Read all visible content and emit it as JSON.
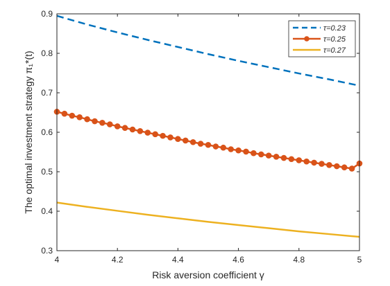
{
  "chart_data": {
    "type": "line",
    "xlabel": "Risk aversion coefficient γ",
    "ylabel": "The optimal investment strategy π₁*(t)",
    "xlim": [
      4,
      5
    ],
    "ylim": [
      0.3,
      0.9
    ],
    "xticks": [
      "4",
      "4.2",
      "4.4",
      "4.6",
      "4.8",
      "5"
    ],
    "yticks": [
      "0.3",
      "0.4",
      "0.5",
      "0.6",
      "0.7",
      "0.8",
      "0.9"
    ],
    "grid": false,
    "legend_position": "top-right",
    "series": [
      {
        "name": "τ=0.23",
        "color": "#0072BD",
        "style": "dashed",
        "markers": false,
        "x": [
          4.0,
          4.1,
          4.2,
          4.3,
          4.4,
          4.5,
          4.6,
          4.7,
          4.8,
          4.9,
          5.0
        ],
        "values": [
          0.895,
          0.873,
          0.853,
          0.834,
          0.816,
          0.798,
          0.781,
          0.765,
          0.749,
          0.734,
          0.718
        ]
      },
      {
        "name": "τ=0.25",
        "color": "#D95319",
        "style": "solid",
        "markers": true,
        "x": [
          4.0,
          4.025,
          4.05,
          4.075,
          4.1,
          4.125,
          4.15,
          4.175,
          4.2,
          4.225,
          4.25,
          4.275,
          4.3,
          4.325,
          4.35,
          4.375,
          4.4,
          4.425,
          4.45,
          4.475,
          4.5,
          4.525,
          4.55,
          4.575,
          4.6,
          4.625,
          4.65,
          4.675,
          4.7,
          4.725,
          4.75,
          4.775,
          4.8,
          4.825,
          4.85,
          4.875,
          4.9,
          4.925,
          4.95,
          4.975,
          5.0
        ],
        "values": [
          0.652,
          0.647,
          0.642,
          0.638,
          0.633,
          0.628,
          0.624,
          0.62,
          0.615,
          0.611,
          0.607,
          0.603,
          0.599,
          0.595,
          0.591,
          0.587,
          0.583,
          0.579,
          0.575,
          0.571,
          0.568,
          0.564,
          0.561,
          0.557,
          0.554,
          0.551,
          0.547,
          0.544,
          0.541,
          0.538,
          0.535,
          0.532,
          0.529,
          0.526,
          0.523,
          0.52,
          0.517,
          0.514,
          0.511,
          0.508,
          0.521
        ]
      },
      {
        "name": "τ=0.27",
        "color": "#EDB120",
        "style": "solid",
        "markers": false,
        "x": [
          4.0,
          4.1,
          4.2,
          4.3,
          4.4,
          4.5,
          4.6,
          4.7,
          4.8,
          4.9,
          5.0
        ],
        "values": [
          0.422,
          0.411,
          0.401,
          0.391,
          0.382,
          0.373,
          0.365,
          0.357,
          0.349,
          0.342,
          0.335
        ]
      }
    ]
  }
}
